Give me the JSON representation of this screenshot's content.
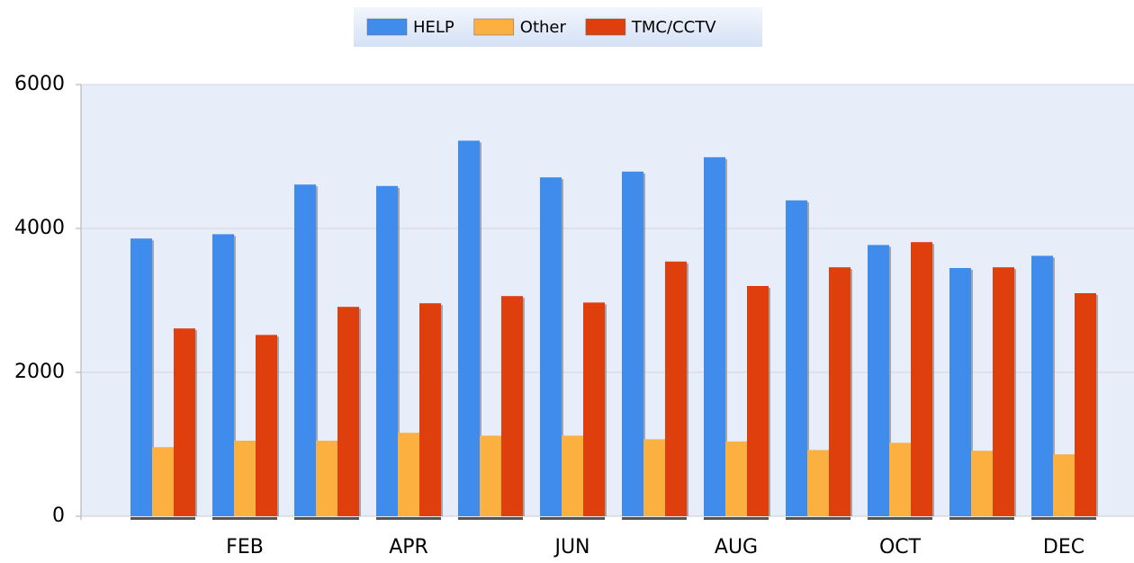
{
  "chart_data": {
    "type": "bar",
    "categories": [
      null,
      "FEB",
      null,
      "APR",
      null,
      "JUN",
      null,
      "AUG",
      null,
      "OCT",
      null,
      "DEC"
    ],
    "series": [
      {
        "name": "HELP",
        "color": "#3f8ced",
        "values": [
          3860,
          3920,
          4610,
          4590,
          5220,
          4710,
          4790,
          4990,
          4390,
          3770,
          3450,
          3620
        ]
      },
      {
        "name": "Other",
        "color": "#fbb040",
        "values": [
          960,
          1050,
          1050,
          1160,
          1120,
          1120,
          1070,
          1040,
          920,
          1020,
          910,
          860
        ]
      },
      {
        "name": "TMC/CCTV",
        "color": "#de3f0c",
        "values": [
          2610,
          2520,
          2910,
          2960,
          3060,
          2970,
          3540,
          3200,
          3460,
          3810,
          3460,
          3100
        ]
      }
    ],
    "ylim": [
      0,
      6000
    ],
    "yticks": [
      0,
      2000,
      4000,
      6000
    ],
    "grid": true,
    "legend": "top"
  }
}
